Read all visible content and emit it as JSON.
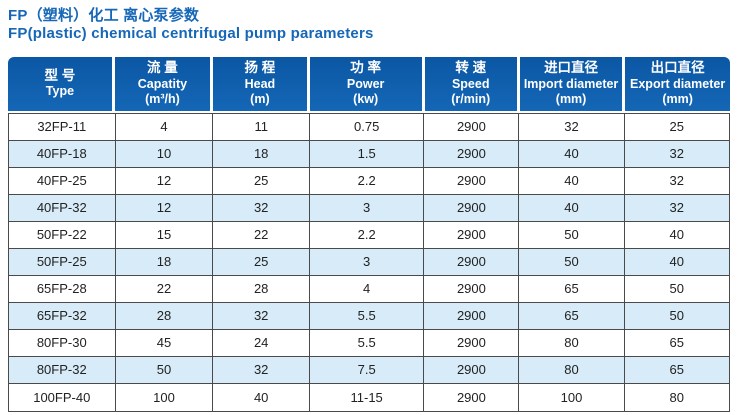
{
  "header": {
    "title_zh": "FP（塑料）化工 离心泵参数",
    "title_en": "FP(plastic) chemical centrifugal pump parameters"
  },
  "table": {
    "columns": [
      {
        "zh": "型 号",
        "en": "Type",
        "unit": ""
      },
      {
        "zh": "流 量",
        "en": "Capatity",
        "unit": "(m³/h)"
      },
      {
        "zh": "扬 程",
        "en": "Head",
        "unit": "(m)"
      },
      {
        "zh": "功 率",
        "en": "Power",
        "unit": "(kw)"
      },
      {
        "zh": "转 速",
        "en": "Speed",
        "unit": "(r/min)"
      },
      {
        "zh": "进口直径",
        "en": "Import diameter",
        "unit": "(mm)"
      },
      {
        "zh": "出口直径",
        "en": "Export diameter",
        "unit": "(mm)"
      }
    ],
    "rows": [
      [
        "32FP-11",
        "4",
        "11",
        "0.75",
        "2900",
        "32",
        "25"
      ],
      [
        "40FP-18",
        "10",
        "18",
        "1.5",
        "2900",
        "40",
        "32"
      ],
      [
        "40FP-25",
        "12",
        "25",
        "2.2",
        "2900",
        "40",
        "32"
      ],
      [
        "40FP-32",
        "12",
        "32",
        "3",
        "2900",
        "40",
        "32"
      ],
      [
        "50FP-22",
        "15",
        "22",
        "2.2",
        "2900",
        "50",
        "40"
      ],
      [
        "50FP-25",
        "18",
        "25",
        "3",
        "2900",
        "50",
        "40"
      ],
      [
        "65FP-28",
        "22",
        "28",
        "4",
        "2900",
        "65",
        "50"
      ],
      [
        "65FP-32",
        "28",
        "32",
        "5.5",
        "2900",
        "65",
        "50"
      ],
      [
        "80FP-30",
        "45",
        "24",
        "5.5",
        "2900",
        "80",
        "65"
      ],
      [
        "80FP-32",
        "50",
        "32",
        "7.5",
        "2900",
        "80",
        "65"
      ],
      [
        "100FP-40",
        "100",
        "40",
        "11-15",
        "2900",
        "100",
        "80"
      ]
    ]
  },
  "colors": {
    "title_text": "#1667b8",
    "header_bg_top": "#0b57a4",
    "header_bg_bottom": "#1467b6",
    "header_text": "#ffffff",
    "row_bg": "#ffffff",
    "row_alt_bg": "#d7ebf8",
    "border": "#4a4a4a",
    "body_text": "#222222"
  }
}
